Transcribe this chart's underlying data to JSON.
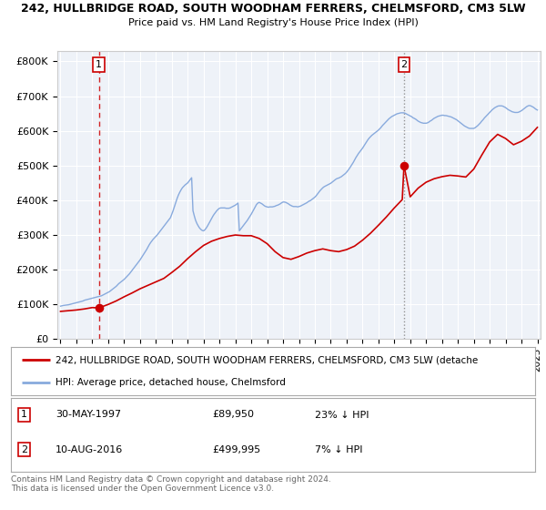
{
  "title1": "242, HULLBRIDGE ROAD, SOUTH WOODHAM FERRERS, CHELMSFORD, CM3 5LW",
  "title2": "Price paid vs. HM Land Registry's House Price Index (HPI)",
  "ylabel_ticks": [
    "£0",
    "£100K",
    "£200K",
    "£300K",
    "£400K",
    "£500K",
    "£600K",
    "£700K",
    "£800K"
  ],
  "ytick_values": [
    0,
    100000,
    200000,
    300000,
    400000,
    500000,
    600000,
    700000,
    800000
  ],
  "ylim": [
    0,
    830000
  ],
  "xlim_start": 1994.8,
  "xlim_end": 2025.2,
  "xticks": [
    1995,
    1996,
    1997,
    1998,
    1999,
    2000,
    2001,
    2002,
    2003,
    2004,
    2005,
    2006,
    2007,
    2008,
    2009,
    2010,
    2011,
    2012,
    2013,
    2014,
    2015,
    2016,
    2017,
    2018,
    2019,
    2020,
    2021,
    2022,
    2023,
    2024,
    2025
  ],
  "purchase1_x": 1997.41,
  "purchase1_y": 89950,
  "purchase2_x": 2016.61,
  "purchase2_y": 499995,
  "purchase1_label": "1",
  "purchase2_label": "2",
  "point_color": "#cc0000",
  "line_color_red": "#cc0000",
  "line_color_blue": "#88aadd",
  "vline1_color": "#cc0000",
  "vline1_style": "--",
  "vline2_color": "#888888",
  "vline2_style": ":",
  "plot_bg": "#eef2f8",
  "legend_line1": "242, HULLBRIDGE ROAD, SOUTH WOODHAM FERRERS, CHELMSFORD, CM3 5LW (detache",
  "legend_line2": "HPI: Average price, detached house, Chelmsford",
  "hpi_x": [
    1995.0,
    1995.083,
    1995.167,
    1995.25,
    1995.333,
    1995.417,
    1995.5,
    1995.583,
    1995.667,
    1995.75,
    1995.833,
    1995.917,
    1996.0,
    1996.083,
    1996.167,
    1996.25,
    1996.333,
    1996.417,
    1996.5,
    1996.583,
    1996.667,
    1996.75,
    1996.833,
    1996.917,
    1997.0,
    1997.083,
    1997.167,
    1997.25,
    1997.333,
    1997.417,
    1997.5,
    1997.583,
    1997.667,
    1997.75,
    1997.833,
    1997.917,
    1998.0,
    1998.083,
    1998.167,
    1998.25,
    1998.333,
    1998.417,
    1998.5,
    1998.583,
    1998.667,
    1998.75,
    1998.833,
    1998.917,
    1999.0,
    1999.083,
    1999.167,
    1999.25,
    1999.333,
    1999.417,
    1999.5,
    1999.583,
    1999.667,
    1999.75,
    1999.833,
    1999.917,
    2000.0,
    2000.083,
    2000.167,
    2000.25,
    2000.333,
    2000.417,
    2000.5,
    2000.583,
    2000.667,
    2000.75,
    2000.833,
    2000.917,
    2001.0,
    2001.083,
    2001.167,
    2001.25,
    2001.333,
    2001.417,
    2001.5,
    2001.583,
    2001.667,
    2001.75,
    2001.833,
    2001.917,
    2002.0,
    2002.083,
    2002.167,
    2002.25,
    2002.333,
    2002.417,
    2002.5,
    2002.583,
    2002.667,
    2002.75,
    2002.833,
    2002.917,
    2003.0,
    2003.083,
    2003.167,
    2003.25,
    2003.333,
    2003.417,
    2003.5,
    2003.583,
    2003.667,
    2003.75,
    2003.833,
    2003.917,
    2004.0,
    2004.083,
    2004.167,
    2004.25,
    2004.333,
    2004.417,
    2004.5,
    2004.583,
    2004.667,
    2004.75,
    2004.833,
    2004.917,
    2005.0,
    2005.083,
    2005.167,
    2005.25,
    2005.333,
    2005.417,
    2005.5,
    2005.583,
    2005.667,
    2005.75,
    2005.833,
    2005.917,
    2006.0,
    2006.083,
    2006.167,
    2006.25,
    2006.333,
    2006.417,
    2006.5,
    2006.583,
    2006.667,
    2006.75,
    2006.833,
    2006.917,
    2007.0,
    2007.083,
    2007.167,
    2007.25,
    2007.333,
    2007.417,
    2007.5,
    2007.583,
    2007.667,
    2007.75,
    2007.833,
    2007.917,
    2008.0,
    2008.083,
    2008.167,
    2008.25,
    2008.333,
    2008.417,
    2008.5,
    2008.583,
    2008.667,
    2008.75,
    2008.833,
    2008.917,
    2009.0,
    2009.083,
    2009.167,
    2009.25,
    2009.333,
    2009.417,
    2009.5,
    2009.583,
    2009.667,
    2009.75,
    2009.833,
    2009.917,
    2010.0,
    2010.083,
    2010.167,
    2010.25,
    2010.333,
    2010.417,
    2010.5,
    2010.583,
    2010.667,
    2010.75,
    2010.833,
    2010.917,
    2011.0,
    2011.083,
    2011.167,
    2011.25,
    2011.333,
    2011.417,
    2011.5,
    2011.583,
    2011.667,
    2011.75,
    2011.833,
    2011.917,
    2012.0,
    2012.083,
    2012.167,
    2012.25,
    2012.333,
    2012.417,
    2012.5,
    2012.583,
    2012.667,
    2012.75,
    2012.833,
    2012.917,
    2013.0,
    2013.083,
    2013.167,
    2013.25,
    2013.333,
    2013.417,
    2013.5,
    2013.583,
    2013.667,
    2013.75,
    2013.833,
    2013.917,
    2014.0,
    2014.083,
    2014.167,
    2014.25,
    2014.333,
    2014.417,
    2014.5,
    2014.583,
    2014.667,
    2014.75,
    2014.833,
    2014.917,
    2015.0,
    2015.083,
    2015.167,
    2015.25,
    2015.333,
    2015.417,
    2015.5,
    2015.583,
    2015.667,
    2015.75,
    2015.833,
    2015.917,
    2016.0,
    2016.083,
    2016.167,
    2016.25,
    2016.333,
    2016.417,
    2016.5,
    2016.583,
    2016.667,
    2016.75,
    2016.833,
    2016.917,
    2017.0,
    2017.083,
    2017.167,
    2017.25,
    2017.333,
    2017.417,
    2017.5,
    2017.583,
    2017.667,
    2017.75,
    2017.833,
    2017.917,
    2018.0,
    2018.083,
    2018.167,
    2018.25,
    2018.333,
    2018.417,
    2018.5,
    2018.583,
    2018.667,
    2018.75,
    2018.833,
    2018.917,
    2019.0,
    2019.083,
    2019.167,
    2019.25,
    2019.333,
    2019.417,
    2019.5,
    2019.583,
    2019.667,
    2019.75,
    2019.833,
    2019.917,
    2020.0,
    2020.083,
    2020.167,
    2020.25,
    2020.333,
    2020.417,
    2020.5,
    2020.583,
    2020.667,
    2020.75,
    2020.833,
    2020.917,
    2021.0,
    2021.083,
    2021.167,
    2021.25,
    2021.333,
    2021.417,
    2021.5,
    2021.583,
    2021.667,
    2021.75,
    2021.833,
    2021.917,
    2022.0,
    2022.083,
    2022.167,
    2022.25,
    2022.333,
    2022.417,
    2022.5,
    2022.583,
    2022.667,
    2022.75,
    2022.833,
    2022.917,
    2023.0,
    2023.083,
    2023.167,
    2023.25,
    2023.333,
    2023.417,
    2023.5,
    2023.583,
    2023.667,
    2023.75,
    2023.833,
    2023.917,
    2024.0,
    2024.083,
    2024.167,
    2024.25,
    2024.333,
    2024.417,
    2024.5,
    2024.583,
    2024.667,
    2024.75,
    2024.833,
    2024.917,
    2025.0
  ],
  "hpi_y": [
    95000,
    96000,
    97000,
    97500,
    98000,
    98500,
    99000,
    100000,
    101000,
    102000,
    103000,
    104000,
    105000,
    106000,
    107000,
    108000,
    109000,
    110000,
    112000,
    113000,
    114000,
    115000,
    116000,
    117000,
    118000,
    119000,
    120000,
    121000,
    122000,
    123000,
    124000,
    125000,
    127000,
    129000,
    131000,
    133000,
    135000,
    137000,
    140000,
    143000,
    146000,
    149000,
    152000,
    156000,
    160000,
    163000,
    166000,
    169000,
    172000,
    176000,
    180000,
    184000,
    188000,
    193000,
    198000,
    203000,
    208000,
    213000,
    218000,
    223000,
    228000,
    234000,
    240000,
    246000,
    252000,
    258000,
    265000,
    272000,
    278000,
    283000,
    288000,
    292000,
    296000,
    300000,
    305000,
    310000,
    315000,
    320000,
    325000,
    330000,
    335000,
    340000,
    345000,
    350000,
    360000,
    370000,
    382000,
    394000,
    405000,
    415000,
    423000,
    430000,
    436000,
    440000,
    444000,
    447000,
    450000,
    455000,
    460000,
    465000,
    370000,
    355000,
    342000,
    333000,
    326000,
    320000,
    316000,
    313000,
    312000,
    315000,
    320000,
    326000,
    333000,
    340000,
    347000,
    354000,
    360000,
    365000,
    370000,
    374000,
    377000,
    378000,
    378000,
    378000,
    378000,
    377000,
    377000,
    377000,
    378000,
    380000,
    382000,
    384000,
    386000,
    389000,
    392000,
    312000,
    317000,
    322000,
    327000,
    332000,
    337000,
    342000,
    348000,
    354000,
    360000,
    367000,
    374000,
    381000,
    388000,
    392000,
    394000,
    392000,
    390000,
    387000,
    384000,
    382000,
    381000,
    380000,
    381000,
    381000,
    381000,
    382000,
    383000,
    385000,
    386000,
    388000,
    390000,
    393000,
    395000,
    395000,
    394000,
    392000,
    390000,
    387000,
    385000,
    383000,
    382000,
    382000,
    382000,
    381000,
    382000,
    383000,
    385000,
    387000,
    389000,
    391000,
    393000,
    396000,
    398000,
    400000,
    403000,
    406000,
    409000,
    413000,
    418000,
    423000,
    428000,
    432000,
    436000,
    439000,
    441000,
    443000,
    445000,
    447000,
    449000,
    452000,
    455000,
    458000,
    461000,
    463000,
    464000,
    466000,
    468000,
    471000,
    474000,
    477000,
    481000,
    486000,
    491000,
    497000,
    503000,
    509000,
    516000,
    523000,
    529000,
    535000,
    540000,
    545000,
    550000,
    556000,
    562000,
    568000,
    574000,
    579000,
    583000,
    587000,
    590000,
    593000,
    596000,
    599000,
    602000,
    606000,
    610000,
    615000,
    619000,
    623000,
    627000,
    631000,
    635000,
    638000,
    641000,
    643000,
    645000,
    647000,
    649000,
    650000,
    651000,
    652000,
    652000,
    652000,
    651000,
    649000,
    647000,
    645000,
    643000,
    641000,
    638000,
    636000,
    634000,
    631000,
    628000,
    626000,
    624000,
    623000,
    622000,
    622000,
    622000,
    623000,
    625000,
    628000,
    630000,
    633000,
    636000,
    638000,
    640000,
    642000,
    643000,
    644000,
    645000,
    645000,
    644000,
    644000,
    643000,
    642000,
    641000,
    640000,
    638000,
    636000,
    634000,
    632000,
    629000,
    626000,
    623000,
    620000,
    617000,
    614000,
    612000,
    610000,
    608000,
    607000,
    607000,
    607000,
    607000,
    609000,
    612000,
    615000,
    619000,
    623000,
    628000,
    632000,
    637000,
    641000,
    645000,
    649000,
    653000,
    657000,
    661000,
    664000,
    667000,
    669000,
    671000,
    672000,
    672000,
    672000,
    671000,
    669000,
    667000,
    664000,
    661000,
    659000,
    657000,
    655000,
    654000,
    653000,
    653000,
    653000,
    654000,
    656000,
    658000,
    661000,
    664000,
    667000,
    670000,
    672000,
    673000,
    672000,
    670000,
    668000,
    665000,
    662000,
    660000
  ],
  "price_x_seg1": [
    1995.0,
    1995.5,
    1996.0,
    1996.5,
    1997.0,
    1997.41
  ],
  "price_y_seg1": [
    80000,
    82000,
    84000,
    87000,
    91000,
    89950
  ],
  "price_x_seg2": [
    1997.41,
    1998.0,
    1998.5,
    1999.0,
    1999.5,
    2000.0,
    2000.5,
    2001.0,
    2001.5,
    2002.0,
    2002.5,
    2003.0,
    2003.5,
    2004.0,
    2004.5,
    2005.0,
    2005.5,
    2006.0,
    2006.5,
    2007.0,
    2007.5,
    2008.0,
    2008.5,
    2009.0,
    2009.5,
    2010.0,
    2010.5,
    2011.0,
    2011.5,
    2012.0,
    2012.5,
    2013.0,
    2013.5,
    2014.0,
    2014.5,
    2015.0,
    2015.5,
    2016.0,
    2016.5,
    2016.61
  ],
  "price_y_seg2": [
    89950,
    100000,
    110000,
    122000,
    133000,
    145000,
    155000,
    165000,
    175000,
    192000,
    210000,
    232000,
    252000,
    270000,
    282000,
    290000,
    296000,
    300000,
    298000,
    298000,
    290000,
    275000,
    252000,
    235000,
    230000,
    238000,
    248000,
    255000,
    260000,
    255000,
    252000,
    258000,
    268000,
    285000,
    305000,
    328000,
    352000,
    378000,
    402000,
    499995
  ],
  "price_x_seg3": [
    2016.61,
    2017.0,
    2017.5,
    2018.0,
    2018.5,
    2019.0,
    2019.5,
    2020.0,
    2020.5,
    2021.0,
    2021.5,
    2022.0,
    2022.5,
    2023.0,
    2023.5,
    2024.0,
    2024.5,
    2025.0
  ],
  "price_y_seg3": [
    499995,
    410000,
    435000,
    452000,
    462000,
    468000,
    472000,
    470000,
    467000,
    490000,
    530000,
    568000,
    590000,
    578000,
    560000,
    570000,
    585000,
    610000
  ]
}
